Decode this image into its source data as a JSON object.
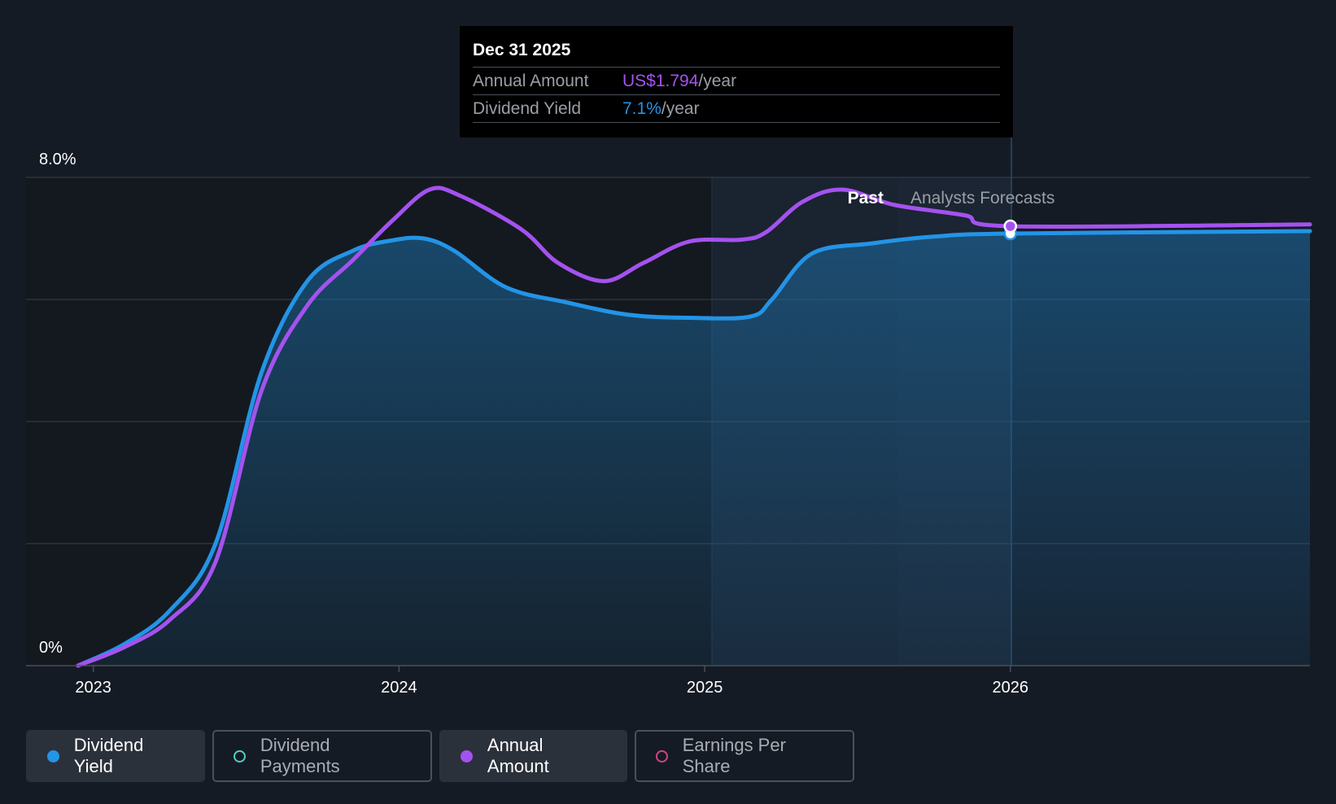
{
  "tooltip": {
    "date": "Dec 31 2025",
    "annual_amount_label": "Annual Amount",
    "annual_amount_value": "US$1.794",
    "annual_amount_unit": "/year",
    "dividend_yield_label": "Dividend Yield",
    "dividend_yield_value": "7.1%",
    "dividend_yield_unit": "/year"
  },
  "chart_data": {
    "type": "area",
    "ylim": [
      0,
      8.0
    ],
    "y_tick_labels": [
      "0%",
      "8.0%"
    ],
    "x_tick_labels": [
      "2023",
      "2024",
      "2025",
      "2026"
    ],
    "xlim": [
      2022.78,
      2026.98
    ],
    "past_label": "Past",
    "forecast_label": "Analysts Forecasts",
    "grid": true,
    "series": [
      {
        "name": "Dividend Yield",
        "color": "#2394e6",
        "fill": true,
        "points": [
          [
            2022.95,
            0.0
          ],
          [
            2023.1,
            0.35
          ],
          [
            2023.25,
            0.9
          ],
          [
            2023.4,
            2.0
          ],
          [
            2023.55,
            4.8
          ],
          [
            2023.7,
            6.3
          ],
          [
            2023.85,
            6.8
          ],
          [
            2023.98,
            6.97
          ],
          [
            2024.08,
            7.0
          ],
          [
            2024.18,
            6.8
          ],
          [
            2024.35,
            6.2
          ],
          [
            2024.55,
            5.95
          ],
          [
            2024.75,
            5.75
          ],
          [
            2024.95,
            5.7
          ],
          [
            2025.15,
            5.72
          ],
          [
            2025.22,
            6.0
          ],
          [
            2025.35,
            6.75
          ],
          [
            2025.55,
            6.92
          ],
          [
            2025.75,
            7.03
          ],
          [
            2026.0,
            7.08
          ],
          [
            2026.98,
            7.12
          ]
        ]
      },
      {
        "name": "Annual Amount",
        "color": "#a452ef",
        "fill": false,
        "points": [
          [
            2022.95,
            0.0
          ],
          [
            2023.1,
            0.3
          ],
          [
            2023.25,
            0.75
          ],
          [
            2023.4,
            1.7
          ],
          [
            2023.55,
            4.5
          ],
          [
            2023.7,
            5.9
          ],
          [
            2023.85,
            6.65
          ],
          [
            2023.98,
            7.3
          ],
          [
            2024.1,
            7.8
          ],
          [
            2024.2,
            7.7
          ],
          [
            2024.4,
            7.15
          ],
          [
            2024.52,
            6.6
          ],
          [
            2024.67,
            6.3
          ],
          [
            2024.8,
            6.6
          ],
          [
            2024.95,
            6.95
          ],
          [
            2025.12,
            6.98
          ],
          [
            2025.2,
            7.1
          ],
          [
            2025.32,
            7.6
          ],
          [
            2025.45,
            7.8
          ],
          [
            2025.62,
            7.55
          ],
          [
            2025.85,
            7.38
          ],
          [
            2026.0,
            7.2
          ],
          [
            2026.98,
            7.23
          ]
        ]
      }
    ]
  },
  "legend": [
    {
      "label": "Dividend Yield",
      "color": "#2394e6",
      "state": "active"
    },
    {
      "label": "Dividend Payments",
      "color": "#4fd1c5",
      "state": "inactive"
    },
    {
      "label": "Annual Amount",
      "color": "#a452ef",
      "state": "active"
    },
    {
      "label": "Earnings Per Share",
      "color": "#d6427f",
      "state": "inactive"
    }
  ]
}
